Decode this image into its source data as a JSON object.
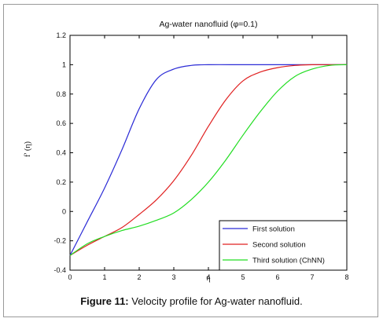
{
  "chart_data": {
    "type": "line",
    "title": "Ag-water nanofluid (φ=0.1)",
    "xlabel": "η",
    "ylabel": "f′ (η)",
    "xlim": [
      0,
      8
    ],
    "ylim": [
      -0.4,
      1.2
    ],
    "xticks": [
      "0",
      "1",
      "2",
      "3",
      "4",
      "5",
      "6",
      "7",
      "8"
    ],
    "yticks": [
      "-0.4",
      "-0.2",
      "0",
      "0.2",
      "0.4",
      "0.6",
      "0.8",
      "1",
      "1.2"
    ],
    "grid": false,
    "legend_position": "bottom-right",
    "series": [
      {
        "name": "First solution",
        "color": "#2b2bd6",
        "x": [
          0,
          0.5,
          1,
          1.5,
          2,
          2.5,
          3,
          3.5,
          4,
          5,
          6,
          7,
          8
        ],
        "y": [
          -0.3,
          -0.07,
          0.16,
          0.42,
          0.7,
          0.9,
          0.97,
          0.995,
          1.0,
          1.0,
          1.0,
          1.0,
          1.0
        ]
      },
      {
        "name": "Second  solution",
        "color": "#e02020",
        "x": [
          0,
          0.5,
          1,
          1.5,
          2,
          2.5,
          3,
          3.5,
          4,
          4.5,
          5,
          5.5,
          6,
          6.5,
          7,
          8
        ],
        "y": [
          -0.3,
          -0.23,
          -0.17,
          -0.11,
          -0.02,
          0.08,
          0.21,
          0.38,
          0.58,
          0.76,
          0.89,
          0.95,
          0.98,
          0.995,
          1.0,
          1.0
        ]
      },
      {
        "name": "Third solution (ChNN)",
        "color": "#22dd22",
        "x": [
          0,
          0.5,
          1,
          1.5,
          2,
          2.5,
          3,
          3.5,
          4,
          4.5,
          5,
          5.5,
          6,
          6.5,
          7,
          7.5,
          8
        ],
        "y": [
          -0.3,
          -0.22,
          -0.17,
          -0.13,
          -0.1,
          -0.06,
          -0.01,
          0.08,
          0.2,
          0.35,
          0.52,
          0.68,
          0.82,
          0.92,
          0.97,
          0.995,
          1.0
        ]
      }
    ]
  },
  "caption": {
    "label": "Figure 11:",
    "text": " Velocity profile for Ag-water nanofluid."
  }
}
